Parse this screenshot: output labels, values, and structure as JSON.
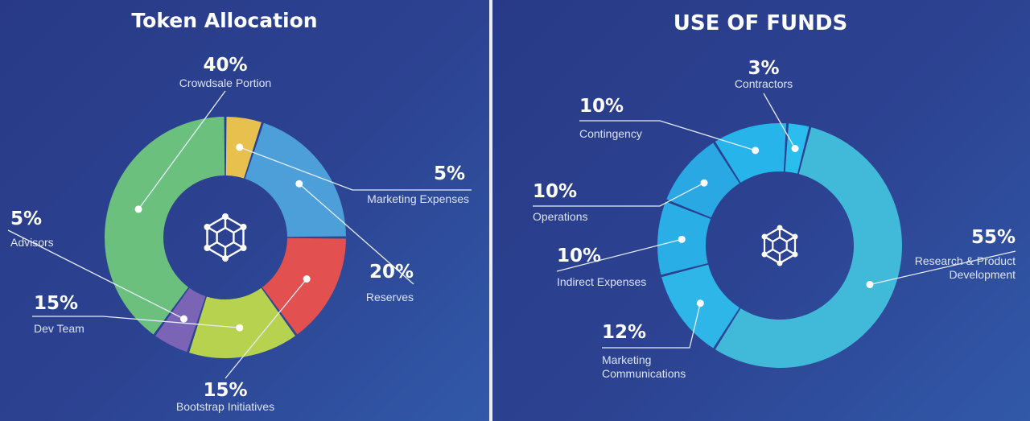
{
  "chart_data": [
    {
      "type": "pie",
      "title": "Token Allocation",
      "slices": [
        {
          "label": "Crowdsale Portion",
          "value": 40,
          "percent_label": "40%",
          "color": "#6cc07e"
        },
        {
          "label": "Marketing Expenses",
          "value": 5,
          "percent_label": "5%",
          "color": "#e8c04e"
        },
        {
          "label": "Reserves",
          "value": 20,
          "percent_label": "20%",
          "color": "#4d9fd9"
        },
        {
          "label": "Bootstrap Initiatives",
          "value": 15,
          "percent_label": "15%",
          "color": "#e2504f"
        },
        {
          "label": "Dev Team",
          "value": 15,
          "percent_label": "15%",
          "color": "#b6d24f"
        },
        {
          "label": "Advisors",
          "value": 5,
          "percent_label": "5%",
          "color": "#7b64b6"
        }
      ]
    },
    {
      "type": "pie",
      "title": "USE OF FUNDS",
      "slices": [
        {
          "label": "Research & Product Development",
          "label_lines": [
            "Research & Product",
            "Development"
          ],
          "value": 55,
          "percent_label": "55%",
          "color": "#41b9d9"
        },
        {
          "label": "Marketing Communications",
          "label_lines": [
            "Marketing",
            "Communications"
          ],
          "value": 12,
          "percent_label": "12%",
          "color": "#2fb6e8"
        },
        {
          "label": "Indirect Expenses",
          "label_lines": [
            "Indirect Expenses"
          ],
          "value": 10,
          "percent_label": "10%",
          "color": "#2aaee6"
        },
        {
          "label": "Operations",
          "label_lines": [
            "Operations"
          ],
          "value": 10,
          "percent_label": "10%",
          "color": "#29a8e3"
        },
        {
          "label": "Contingency",
          "label_lines": [
            "Contingency"
          ],
          "value": 10,
          "percent_label": "10%",
          "color": "#27b4ea"
        },
        {
          "label": "Contractors",
          "label_lines": [
            "Contractors"
          ],
          "value": 3,
          "percent_label": "3%",
          "color": "#2bbdee"
        }
      ]
    }
  ]
}
